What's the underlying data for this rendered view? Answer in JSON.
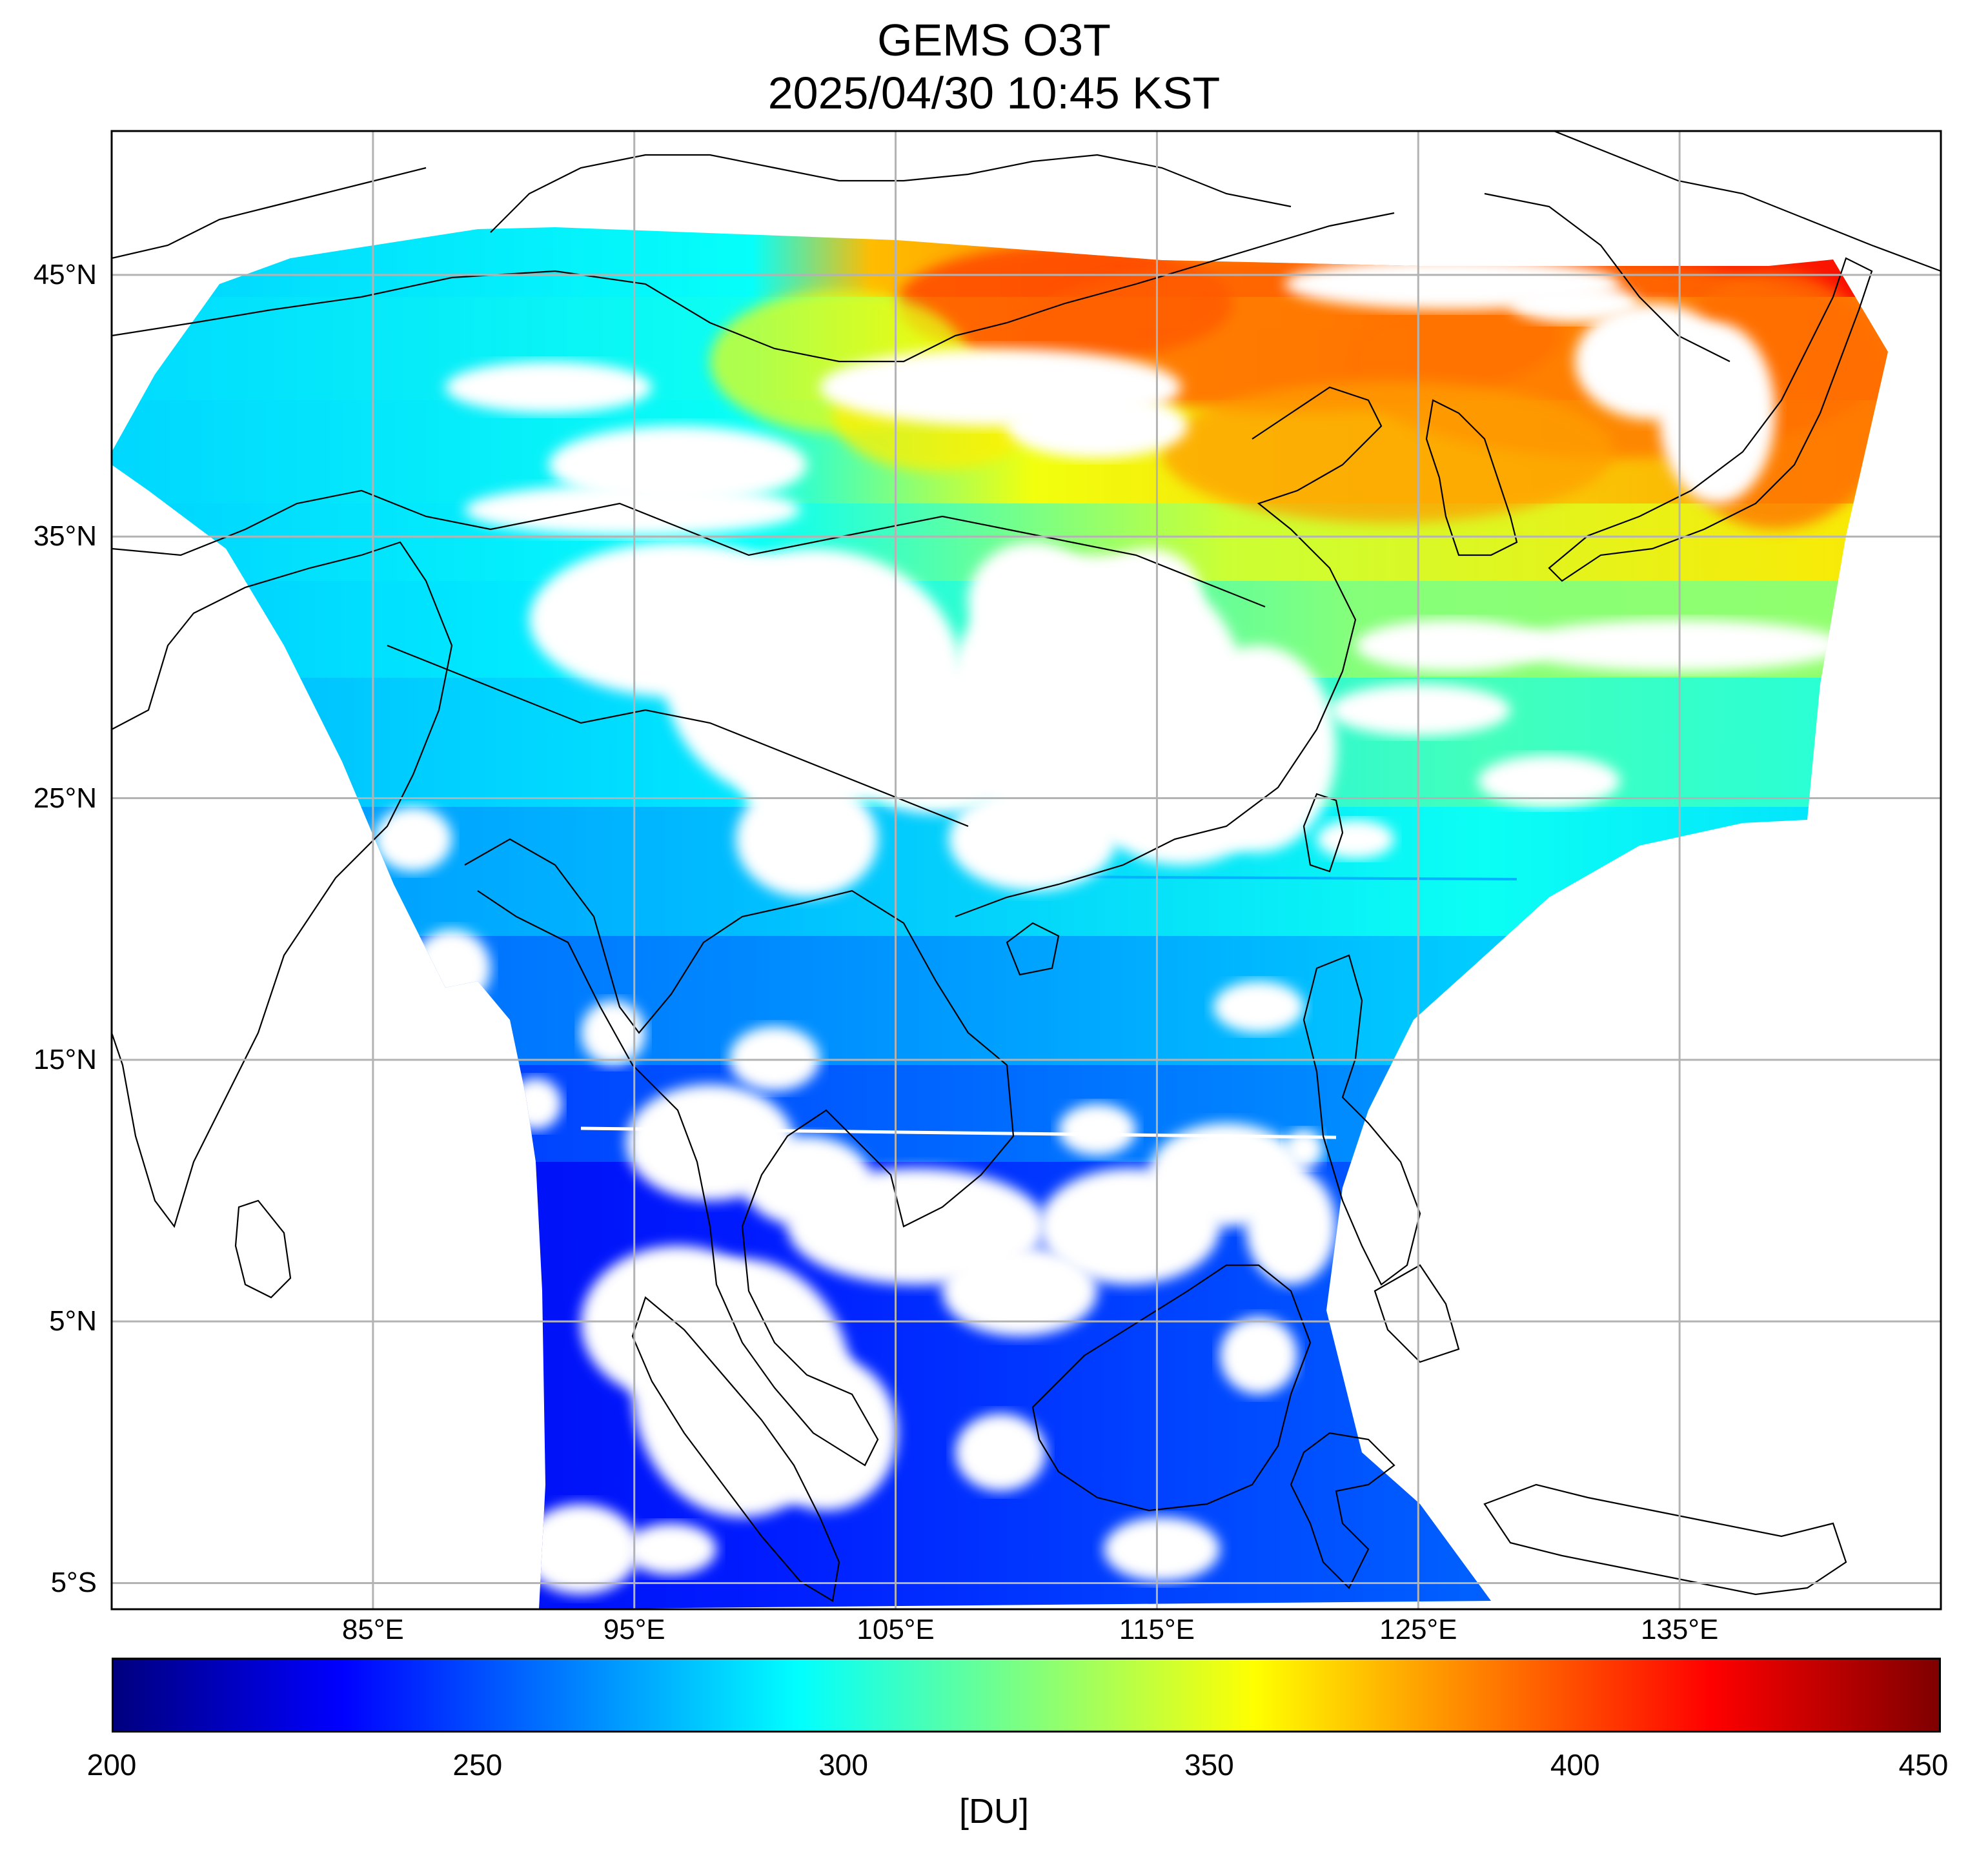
{
  "title": {
    "line1": "GEMS O3T",
    "line2": "2025/04/30 10:45 KST"
  },
  "map": {
    "lon_range": [
      75,
      145
    ],
    "lat_range": [
      -6,
      50.5
    ],
    "lat_ticks": [
      {
        "value": 45,
        "label": "45°N"
      },
      {
        "value": 35,
        "label": "35°N"
      },
      {
        "value": 25,
        "label": "25°N"
      },
      {
        "value": 15,
        "label": "15°N"
      },
      {
        "value": 5,
        "label": "5°N"
      },
      {
        "value": -5,
        "label": "5°S"
      }
    ],
    "lon_ticks": [
      {
        "value": 85,
        "label": "85°E"
      },
      {
        "value": 95,
        "label": "95°E"
      },
      {
        "value": 105,
        "label": "105°E"
      },
      {
        "value": 115,
        "label": "115°E"
      },
      {
        "value": 125,
        "label": "125°E"
      },
      {
        "value": 135,
        "label": "135°E"
      }
    ],
    "grid": true,
    "grid_color": "#b3b3b3"
  },
  "colorbar": {
    "min": 200,
    "max": 450,
    "ticks": [
      {
        "value": 200,
        "label": "200"
      },
      {
        "value": 250,
        "label": "250"
      },
      {
        "value": 300,
        "label": "300"
      },
      {
        "value": 350,
        "label": "350"
      },
      {
        "value": 400,
        "label": "400"
      },
      {
        "value": 450,
        "label": "450"
      }
    ],
    "unit": "[DU]",
    "colormap": [
      "#00007f",
      "#0000ff",
      "#007fff",
      "#00ffff",
      "#7fff7f",
      "#ffff00",
      "#ff7f00",
      "#ff0000",
      "#7f0000"
    ]
  },
  "field": {
    "regions": [
      {
        "value": 300
      },
      {
        "value": 340
      },
      {
        "value": 395
      },
      {
        "value": 385
      },
      {
        "value": 345
      },
      {
        "value": 300
      },
      {
        "value": 285
      },
      {
        "value": 275
      },
      {
        "value": 245
      },
      {
        "value": 235
      }
    ]
  }
}
